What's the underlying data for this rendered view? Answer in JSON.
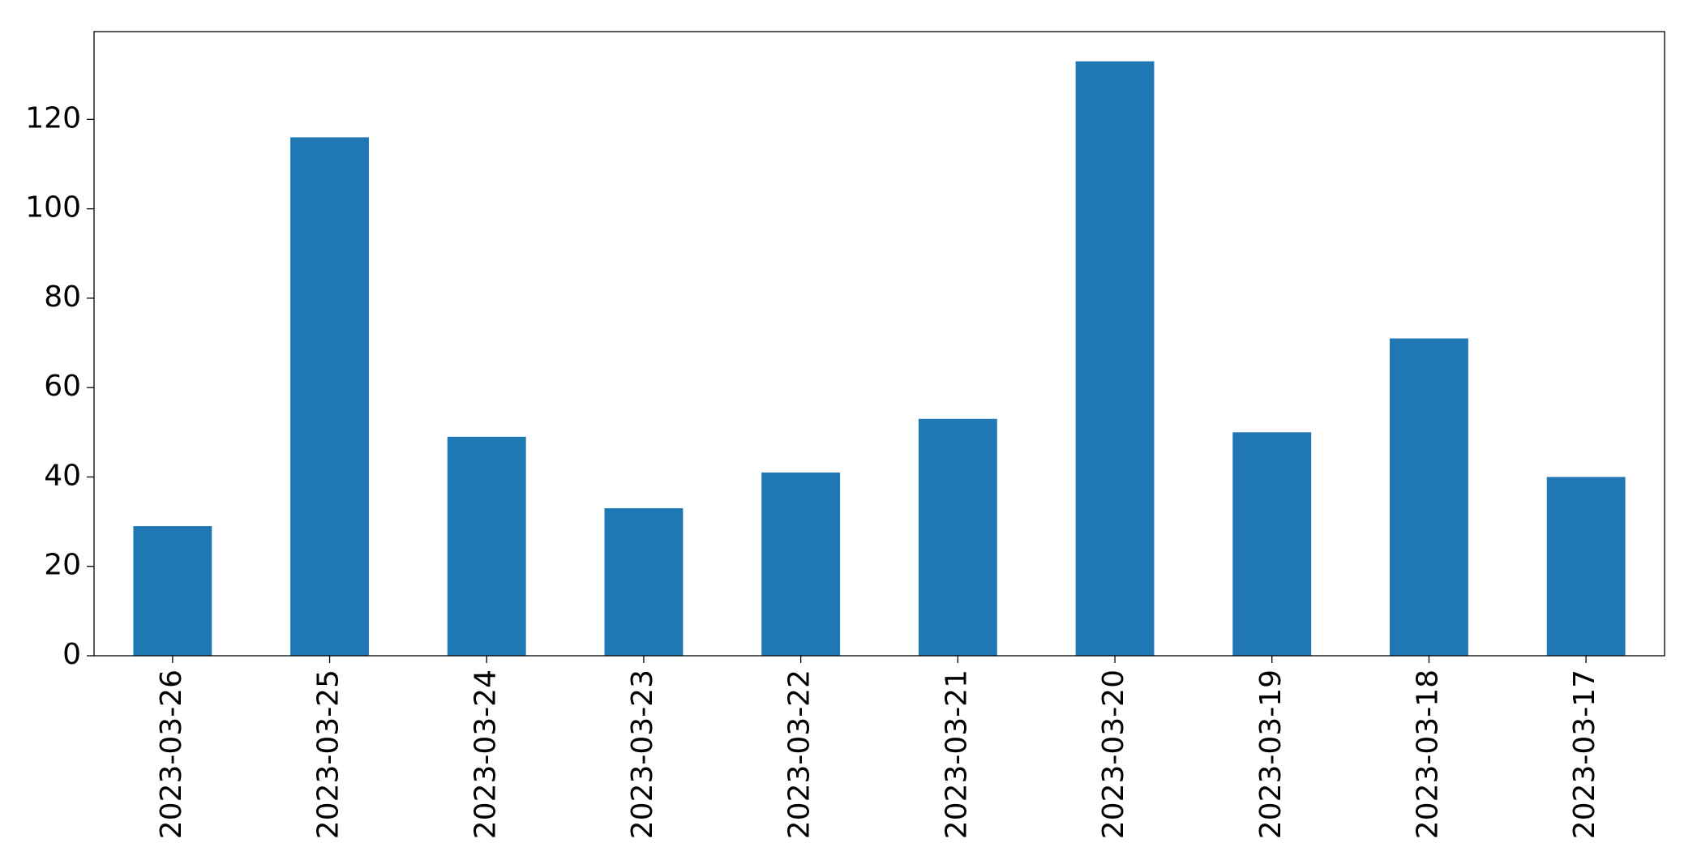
{
  "chart_data": {
    "type": "bar",
    "categories": [
      "2023-03-26",
      "2023-03-25",
      "2023-03-24",
      "2023-03-23",
      "2023-03-22",
      "2023-03-21",
      "2023-03-20",
      "2023-03-19",
      "2023-03-18",
      "2023-03-17"
    ],
    "values": [
      29,
      116,
      49,
      33,
      41,
      53,
      133,
      50,
      71,
      40
    ],
    "color": "#1f77b4",
    "ylim": [
      0,
      139.65
    ],
    "yticks": [
      0,
      20,
      40,
      60,
      80,
      100,
      120
    ],
    "grid": false
  }
}
